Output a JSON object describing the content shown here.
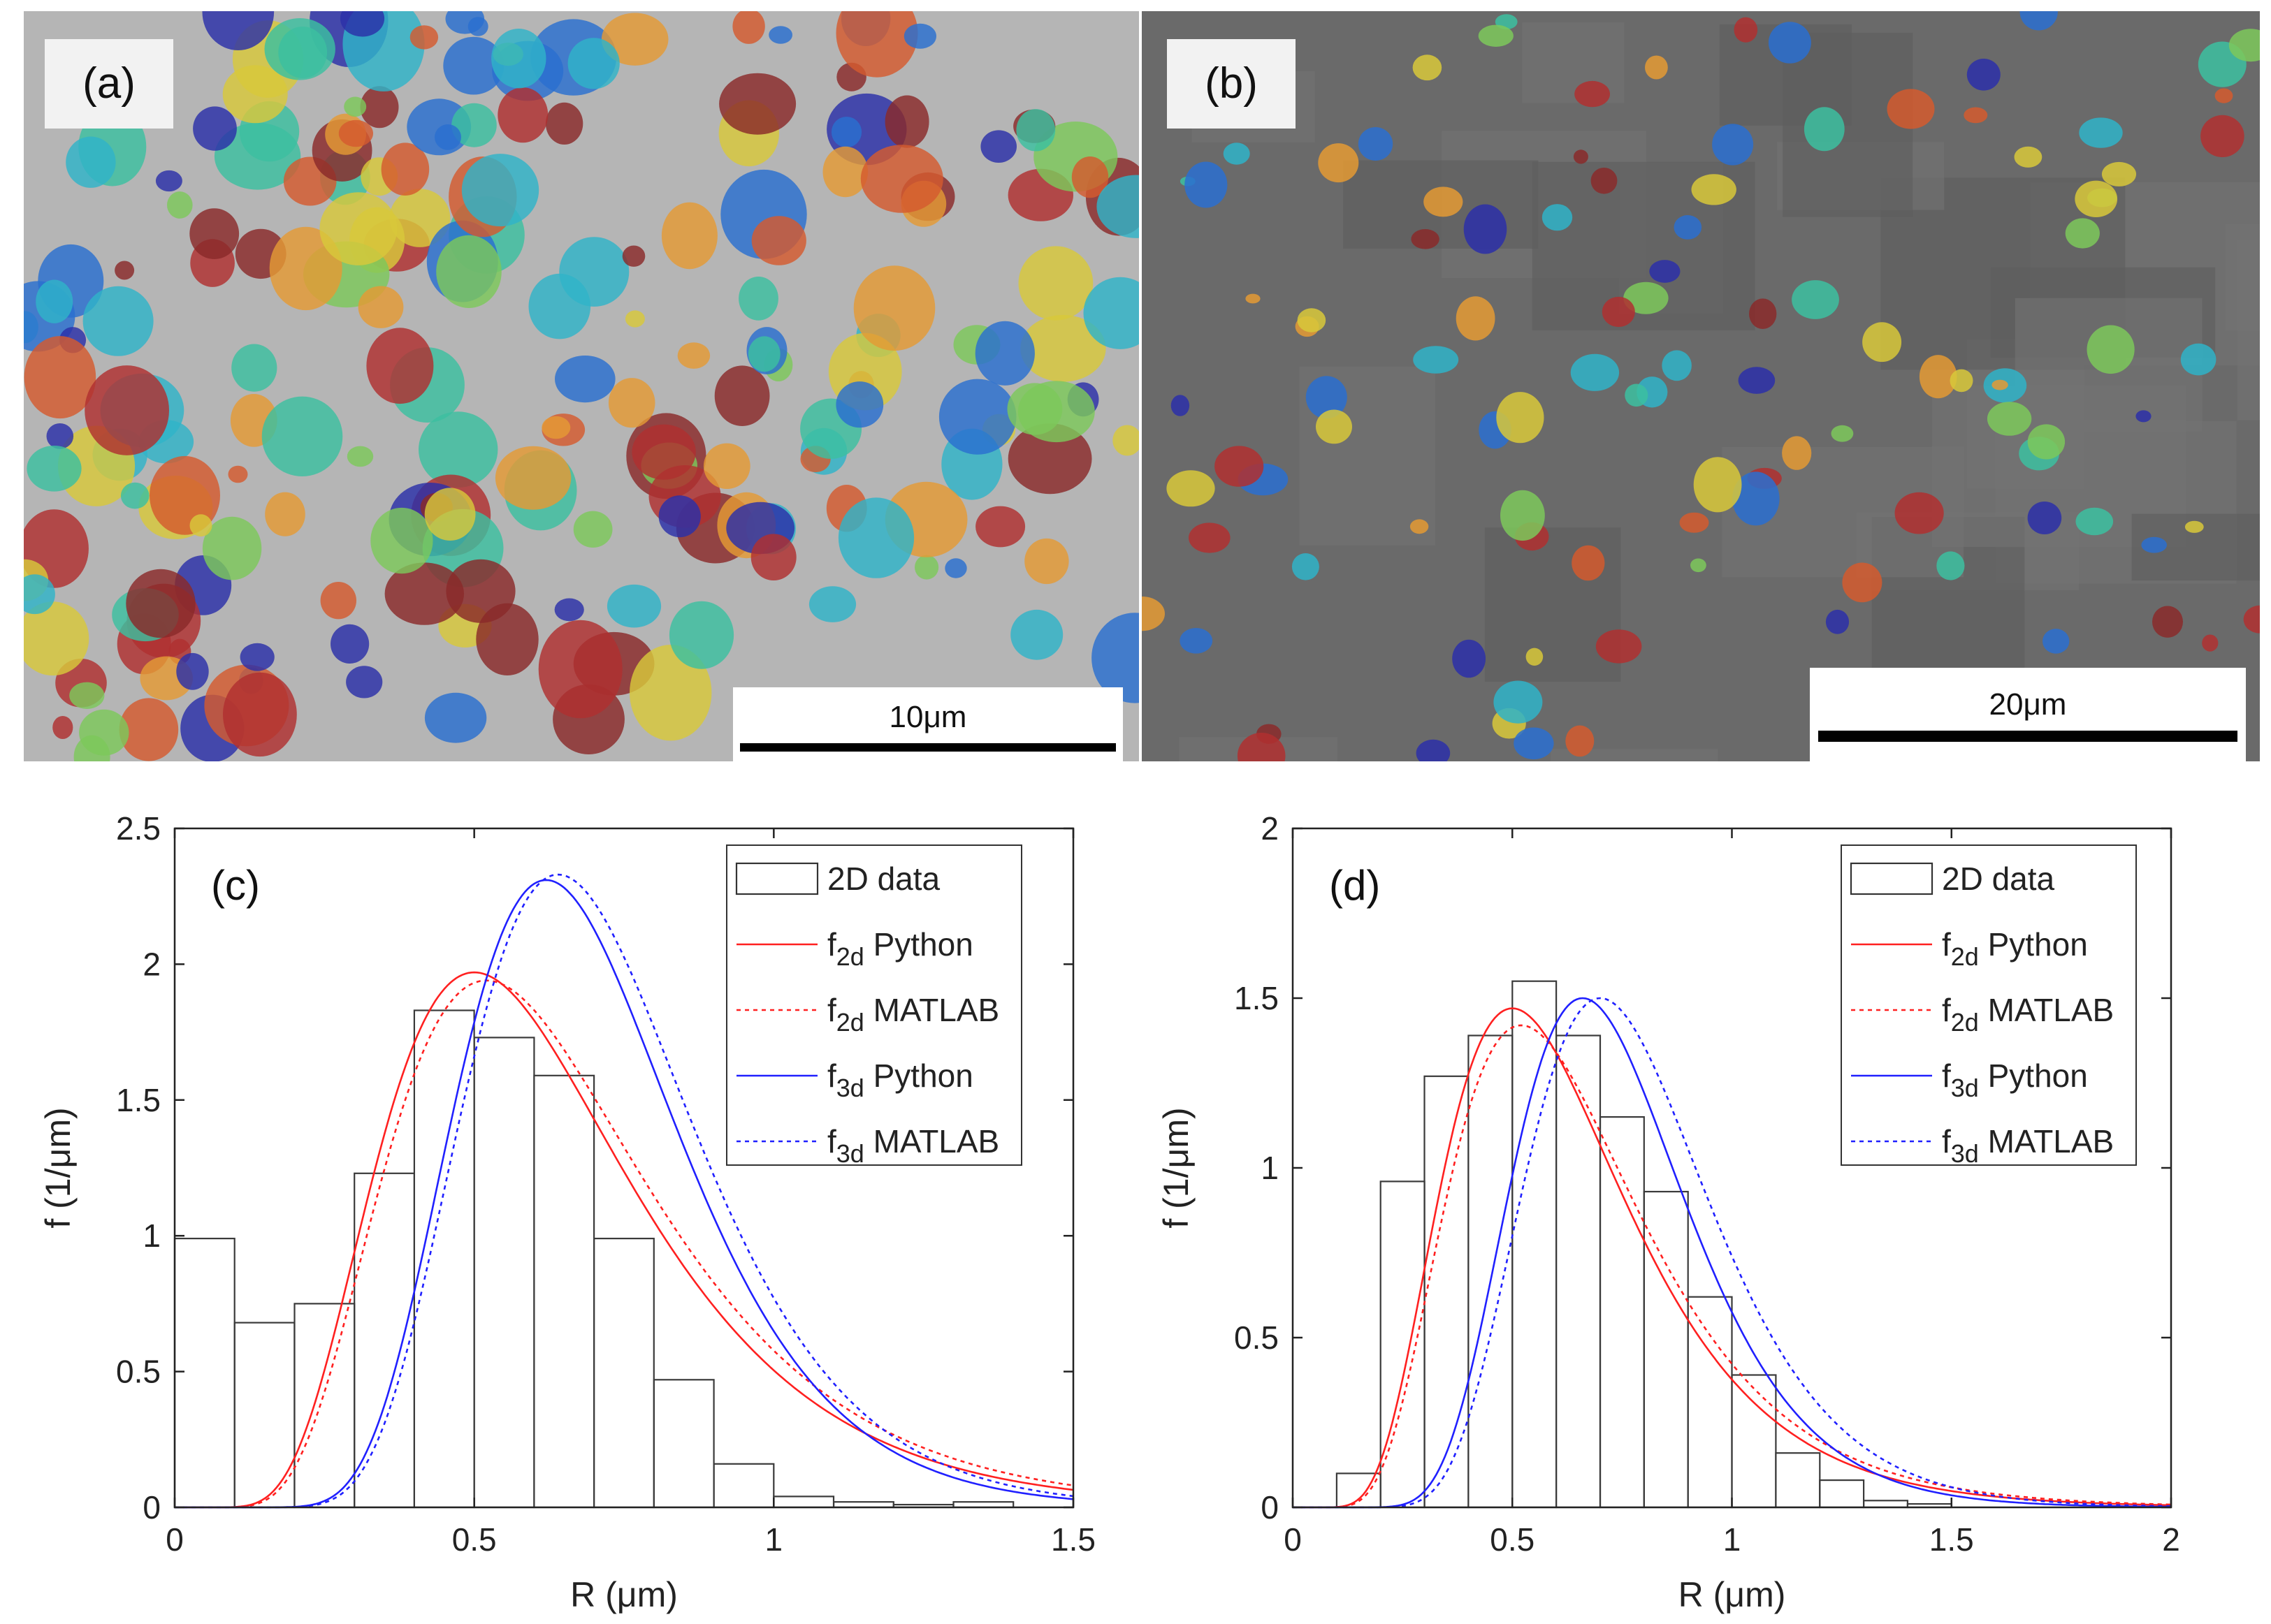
{
  "panels": {
    "a": {
      "label": "(a)",
      "scale_bar": "10μm"
    },
    "b": {
      "label": "(b)",
      "scale_bar": "20μm"
    }
  },
  "chart_data": [
    {
      "type": "bar",
      "panel_label": "(c)",
      "xlabel": "R (μm)",
      "ylabel": "f (1/μm)",
      "xlim": [
        0,
        1.5
      ],
      "ylim": [
        0,
        2.5
      ],
      "xticks": [
        "0",
        "0.5",
        "1",
        "1.5"
      ],
      "yticks": [
        "0",
        "0.5",
        "1",
        "1.5",
        "2",
        "2.5"
      ],
      "bin_width": 0.1,
      "bins_left": [
        0,
        0.1,
        0.2,
        0.3,
        0.4,
        0.5,
        0.6,
        0.7,
        0.8,
        0.9,
        1.0,
        1.1,
        1.2,
        1.3,
        1.4
      ],
      "values": [
        0.99,
        0.68,
        0.75,
        1.23,
        1.83,
        1.73,
        1.59,
        0.99,
        0.47,
        0.16,
        0.04,
        0.02,
        0.01,
        0.02,
        0.0
      ],
      "series": [
        {
          "name": "2D data",
          "subscript": "",
          "label_text": "2D data",
          "style": "bars",
          "color": "#555555"
        },
        {
          "name": "f2d Python",
          "subscript": "2d",
          "label_text": "Python",
          "style": "solid",
          "color": "#ff2020",
          "mode": 0.5,
          "peak": 1.97
        },
        {
          "name": "f2d MATLAB",
          "subscript": "2d",
          "label_text": "MATLAB",
          "style": "dotted",
          "color": "#ff2020",
          "mode": 0.52,
          "peak": 1.94
        },
        {
          "name": "f3d Python",
          "subscript": "3d",
          "label_text": "Python",
          "style": "solid",
          "color": "#2020ff",
          "mode": 0.62,
          "peak": 2.31
        },
        {
          "name": "f3d MATLAB",
          "subscript": "3d",
          "label_text": "MATLAB",
          "style": "dotted",
          "color": "#2020ff",
          "mode": 0.64,
          "peak": 2.33
        }
      ],
      "legend_placement": "top-right"
    },
    {
      "type": "bar",
      "panel_label": "(d)",
      "xlabel": "R (μm)",
      "ylabel": "f (1/μm)",
      "xlim": [
        0,
        2
      ],
      "ylim": [
        0,
        2
      ],
      "xticks": [
        "0",
        "0.5",
        "1",
        "1.5",
        "2"
      ],
      "yticks": [
        "0",
        "0.5",
        "1",
        "1.5",
        "2"
      ],
      "bin_width": 0.1,
      "bins_left": [
        0.1,
        0.2,
        0.3,
        0.4,
        0.5,
        0.6,
        0.7,
        0.8,
        0.9,
        1.0,
        1.1,
        1.2,
        1.3,
        1.4
      ],
      "values": [
        0.1,
        0.96,
        1.27,
        1.39,
        1.55,
        1.39,
        1.15,
        0.93,
        0.62,
        0.39,
        0.16,
        0.08,
        0.02,
        0.01
      ],
      "series": [
        {
          "name": "2D data",
          "subscript": "",
          "label_text": "2D data",
          "style": "bars",
          "color": "#555555"
        },
        {
          "name": "f2d Python",
          "subscript": "2d",
          "label_text": "Python",
          "style": "solid",
          "color": "#ff2020",
          "mode": 0.5,
          "peak": 1.47
        },
        {
          "name": "f2d MATLAB",
          "subscript": "2d",
          "label_text": "MATLAB",
          "style": "dotted",
          "color": "#ff2020",
          "mode": 0.52,
          "peak": 1.42
        },
        {
          "name": "f3d Python",
          "subscript": "3d",
          "label_text": "Python",
          "style": "solid",
          "color": "#2020ff",
          "mode": 0.66,
          "peak": 1.5
        },
        {
          "name": "f3d MATLAB",
          "subscript": "3d",
          "label_text": "MATLAB",
          "style": "dotted",
          "color": "#2020ff",
          "mode": 0.7,
          "peak": 1.5
        }
      ],
      "legend_placement": "top-right"
    }
  ]
}
